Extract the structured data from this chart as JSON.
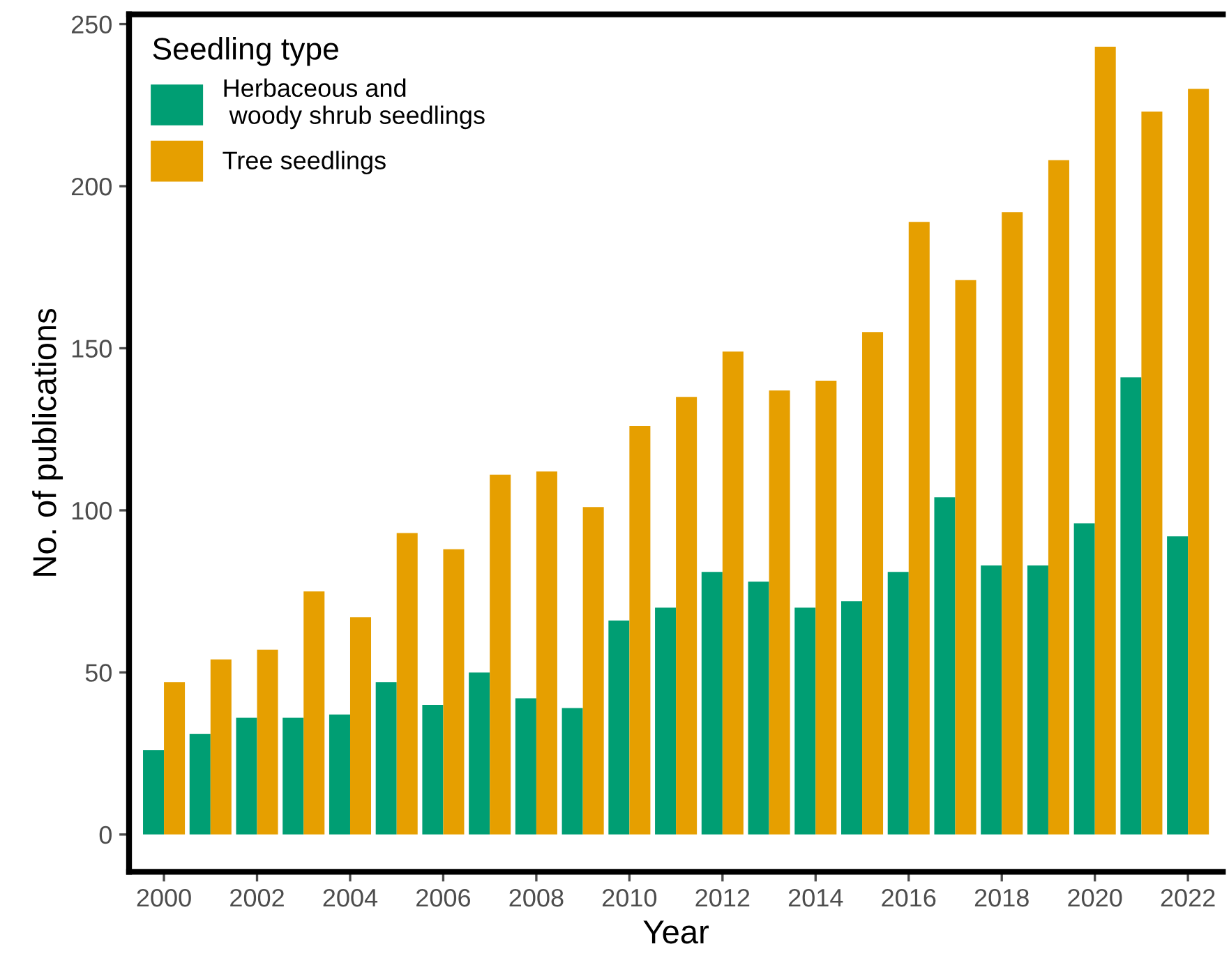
{
  "chart_data": {
    "type": "bar",
    "xlabel": "Year",
    "ylabel": "No. of publications",
    "legend_title": "Seedling type",
    "legend": "top left",
    "categories": [
      "2000",
      null,
      "2002",
      null,
      "2004",
      null,
      "2006",
      null,
      "2008",
      null,
      "2010",
      null,
      "2012",
      null,
      "2014",
      null,
      "2016",
      null,
      "2018",
      null,
      "2020",
      null,
      "2022"
    ],
    "series": [
      {
        "name": "Herbaceous and\n woody shrub seedlings",
        "color": "#009e73",
        "values": [
          26,
          31,
          36,
          36,
          37,
          47,
          40,
          50,
          42,
          39,
          66,
          70,
          81,
          78,
          70,
          72,
          81,
          104,
          83,
          83,
          96,
          141,
          92
        ]
      },
      {
        "name": "Tree seedlings",
        "color": "#e69f00",
        "values": [
          47,
          54,
          57,
          75,
          67,
          93,
          88,
          111,
          112,
          101,
          126,
          135,
          149,
          137,
          140,
          155,
          189,
          171,
          192,
          208,
          243,
          223,
          230
        ]
      }
    ],
    "ylim": [
      -11.5,
      253
    ],
    "yticks": [
      0,
      50,
      100,
      150,
      200,
      250
    ],
    "grid": false
  }
}
